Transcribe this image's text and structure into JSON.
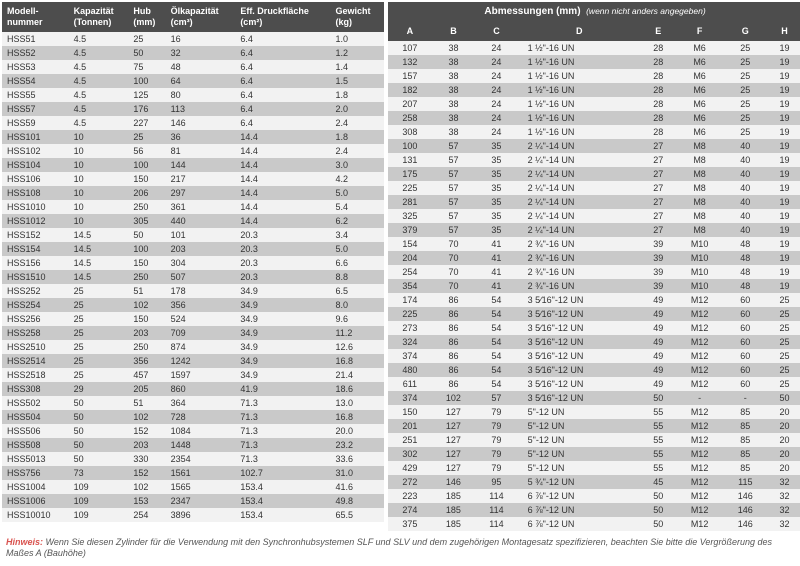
{
  "left_headers": [
    "Modell-\nnummer",
    "Kapazität\n(Tonnen)",
    "Hub\n(mm)",
    "Ölkapazität\n(cm³)",
    "Eff. Druckfläche\n(cm²)",
    "Gewicht\n(kg)"
  ],
  "right_super": "Abmessungen (mm)",
  "right_super_note": "(wenn nicht anders angegeben)",
  "right_headers": [
    "A",
    "B",
    "C",
    "D",
    "E",
    "F",
    "G",
    "H"
  ],
  "rows": [
    {
      "l": [
        "HSS51",
        "4.5",
        "25",
        "16",
        "6.4",
        "1.0"
      ],
      "r": [
        "107",
        "38",
        "24",
        "1 ½\"-16 UN",
        "28",
        "M6",
        "25",
        "19"
      ]
    },
    {
      "l": [
        "HSS52",
        "4.5",
        "50",
        "32",
        "6.4",
        "1.2"
      ],
      "r": [
        "132",
        "38",
        "24",
        "1 ½\"-16 UN",
        "28",
        "M6",
        "25",
        "19"
      ]
    },
    {
      "l": [
        "HSS53",
        "4.5",
        "75",
        "48",
        "6.4",
        "1.4"
      ],
      "r": [
        "157",
        "38",
        "24",
        "1 ½\"-16 UN",
        "28",
        "M6",
        "25",
        "19"
      ]
    },
    {
      "l": [
        "HSS54",
        "4.5",
        "100",
        "64",
        "6.4",
        "1.5"
      ],
      "r": [
        "182",
        "38",
        "24",
        "1 ½\"-16 UN",
        "28",
        "M6",
        "25",
        "19"
      ]
    },
    {
      "l": [
        "HSS55",
        "4.5",
        "125",
        "80",
        "6.4",
        "1.8"
      ],
      "r": [
        "207",
        "38",
        "24",
        "1 ½\"-16 UN",
        "28",
        "M6",
        "25",
        "19"
      ]
    },
    {
      "l": [
        "HSS57",
        "4.5",
        "176",
        "113",
        "6.4",
        "2.0"
      ],
      "r": [
        "258",
        "38",
        "24",
        "1 ½\"-16 UN",
        "28",
        "M6",
        "25",
        "19"
      ]
    },
    {
      "l": [
        "HSS59",
        "4.5",
        "227",
        "146",
        "6.4",
        "2.4"
      ],
      "r": [
        "308",
        "38",
        "24",
        "1 ½\"-16 UN",
        "28",
        "M6",
        "25",
        "19"
      ]
    },
    {
      "l": [
        "HSS101",
        "10",
        "25",
        "36",
        "14.4",
        "1.8"
      ],
      "r": [
        "100",
        "57",
        "35",
        "2 ¼\"-14 UN",
        "27",
        "M8",
        "40",
        "19"
      ]
    },
    {
      "l": [
        "HSS102",
        "10",
        "56",
        "81",
        "14.4",
        "2.4"
      ],
      "r": [
        "131",
        "57",
        "35",
        "2 ¼\"-14 UN",
        "27",
        "M8",
        "40",
        "19"
      ]
    },
    {
      "l": [
        "HSS104",
        "10",
        "100",
        "144",
        "14.4",
        "3.0"
      ],
      "r": [
        "175",
        "57",
        "35",
        "2 ¼\"-14 UN",
        "27",
        "M8",
        "40",
        "19"
      ]
    },
    {
      "l": [
        "HSS106",
        "10",
        "150",
        "217",
        "14.4",
        "4.2"
      ],
      "r": [
        "225",
        "57",
        "35",
        "2 ¼\"-14 UN",
        "27",
        "M8",
        "40",
        "19"
      ]
    },
    {
      "l": [
        "HSS108",
        "10",
        "206",
        "297",
        "14.4",
        "5.0"
      ],
      "r": [
        "281",
        "57",
        "35",
        "2 ¼\"-14 UN",
        "27",
        "M8",
        "40",
        "19"
      ]
    },
    {
      "l": [
        "HSS1010",
        "10",
        "250",
        "361",
        "14.4",
        "5.4"
      ],
      "r": [
        "325",
        "57",
        "35",
        "2 ¼\"-14 UN",
        "27",
        "M8",
        "40",
        "19"
      ]
    },
    {
      "l": [
        "HSS1012",
        "10",
        "305",
        "440",
        "14.4",
        "6.2"
      ],
      "r": [
        "379",
        "57",
        "35",
        "2 ¼\"-14 UN",
        "27",
        "M8",
        "40",
        "19"
      ]
    },
    {
      "l": [
        "HSS152",
        "14.5",
        "50",
        "101",
        "20.3",
        "3.4"
      ],
      "r": [
        "154",
        "70",
        "41",
        "2 ¾\"-16 UN",
        "39",
        "M10",
        "48",
        "19"
      ]
    },
    {
      "l": [
        "HSS154",
        "14.5",
        "100",
        "203",
        "20.3",
        "5.0"
      ],
      "r": [
        "204",
        "70",
        "41",
        "2 ¾\"-16 UN",
        "39",
        "M10",
        "48",
        "19"
      ]
    },
    {
      "l": [
        "HSS156",
        "14.5",
        "150",
        "304",
        "20.3",
        "6.6"
      ],
      "r": [
        "254",
        "70",
        "41",
        "2 ¾\"-16 UN",
        "39",
        "M10",
        "48",
        "19"
      ]
    },
    {
      "l": [
        "HSS1510",
        "14.5",
        "250",
        "507",
        "20.3",
        "8.8"
      ],
      "r": [
        "354",
        "70",
        "41",
        "2 ¾\"-16 UN",
        "39",
        "M10",
        "48",
        "19"
      ]
    },
    {
      "l": [
        "HSS252",
        "25",
        "51",
        "178",
        "34.9",
        "6.5"
      ],
      "r": [
        "174",
        "86",
        "54",
        "3 5⁄16\"-12 UN",
        "49",
        "M12",
        "60",
        "25"
      ]
    },
    {
      "l": [
        "HSS254",
        "25",
        "102",
        "356",
        "34.9",
        "8.0"
      ],
      "r": [
        "225",
        "86",
        "54",
        "3 5⁄16\"-12 UN",
        "49",
        "M12",
        "60",
        "25"
      ]
    },
    {
      "l": [
        "HSS256",
        "25",
        "150",
        "524",
        "34.9",
        "9.6"
      ],
      "r": [
        "273",
        "86",
        "54",
        "3 5⁄16\"-12 UN",
        "49",
        "M12",
        "60",
        "25"
      ]
    },
    {
      "l": [
        "HSS258",
        "25",
        "203",
        "709",
        "34.9",
        "11.2"
      ],
      "r": [
        "324",
        "86",
        "54",
        "3 5⁄16\"-12 UN",
        "49",
        "M12",
        "60",
        "25"
      ]
    },
    {
      "l": [
        "HSS2510",
        "25",
        "250",
        "874",
        "34.9",
        "12.6"
      ],
      "r": [
        "374",
        "86",
        "54",
        "3 5⁄16\"-12 UN",
        "49",
        "M12",
        "60",
        "25"
      ]
    },
    {
      "l": [
        "HSS2514",
        "25",
        "356",
        "1242",
        "34.9",
        "16.8"
      ],
      "r": [
        "480",
        "86",
        "54",
        "3 5⁄16\"-12 UN",
        "49",
        "M12",
        "60",
        "25"
      ]
    },
    {
      "l": [
        "HSS2518",
        "25",
        "457",
        "1597",
        "34.9",
        "21.4"
      ],
      "r": [
        "611",
        "86",
        "54",
        "3 5⁄16\"-12 UN",
        "49",
        "M12",
        "60",
        "25"
      ]
    },
    {
      "l": [
        "HSS308",
        "29",
        "205",
        "860",
        "41.9",
        "18.6"
      ],
      "r": [
        "374",
        "102",
        "57",
        "3 5⁄16\"-12 UN",
        "50",
        "-",
        "-",
        "50"
      ]
    },
    {
      "l": [
        "HSS502",
        "50",
        "51",
        "364",
        "71.3",
        "13.0"
      ],
      "r": [
        "150",
        "127",
        "79",
        "5\"-12 UN",
        "55",
        "M12",
        "85",
        "20"
      ]
    },
    {
      "l": [
        "HSS504",
        "50",
        "102",
        "728",
        "71.3",
        "16.8"
      ],
      "r": [
        "201",
        "127",
        "79",
        "5\"-12 UN",
        "55",
        "M12",
        "85",
        "20"
      ]
    },
    {
      "l": [
        "HSS506",
        "50",
        "152",
        "1084",
        "71.3",
        "20.0"
      ],
      "r": [
        "251",
        "127",
        "79",
        "5\"-12 UN",
        "55",
        "M12",
        "85",
        "20"
      ]
    },
    {
      "l": [
        "HSS508",
        "50",
        "203",
        "1448",
        "71.3",
        "23.2"
      ],
      "r": [
        "302",
        "127",
        "79",
        "5\"-12 UN",
        "55",
        "M12",
        "85",
        "20"
      ]
    },
    {
      "l": [
        "HSS5013",
        "50",
        "330",
        "2354",
        "71.3",
        "33.6"
      ],
      "r": [
        "429",
        "127",
        "79",
        "5\"-12 UN",
        "55",
        "M12",
        "85",
        "20"
      ]
    },
    {
      "l": [
        "HSS756",
        "73",
        "152",
        "1561",
        "102.7",
        "31.0"
      ],
      "r": [
        "272",
        "146",
        "95",
        "5 ¾\"-12 UN",
        "45",
        "M12",
        "115",
        "32"
      ]
    },
    {
      "l": [
        "HSS1004",
        "109",
        "102",
        "1565",
        "153.4",
        "41.6"
      ],
      "r": [
        "223",
        "185",
        "114",
        "6 ⅞\"-12 UN",
        "50",
        "M12",
        "146",
        "32"
      ]
    },
    {
      "l": [
        "HSS1006",
        "109",
        "153",
        "2347",
        "153.4",
        "49.8"
      ],
      "r": [
        "274",
        "185",
        "114",
        "6 ⅞\"-12 UN",
        "50",
        "M12",
        "146",
        "32"
      ]
    },
    {
      "l": [
        "HSS10010",
        "109",
        "254",
        "3896",
        "153.4",
        "65.5"
      ],
      "r": [
        "375",
        "185",
        "114",
        "6 ⅞\"-12 UN",
        "50",
        "M12",
        "146",
        "32"
      ]
    }
  ],
  "footnote_label": "Hinweis:",
  "footnote_text": "Wenn Sie diesen Zylinder für die Verwendung mit den Synchronhubsystemen SLF und SLV und dem zugehörigen Montagesatz spezifizieren, beachten Sie bitte die Vergrößerung des Maßes A (Bauhöhe)"
}
